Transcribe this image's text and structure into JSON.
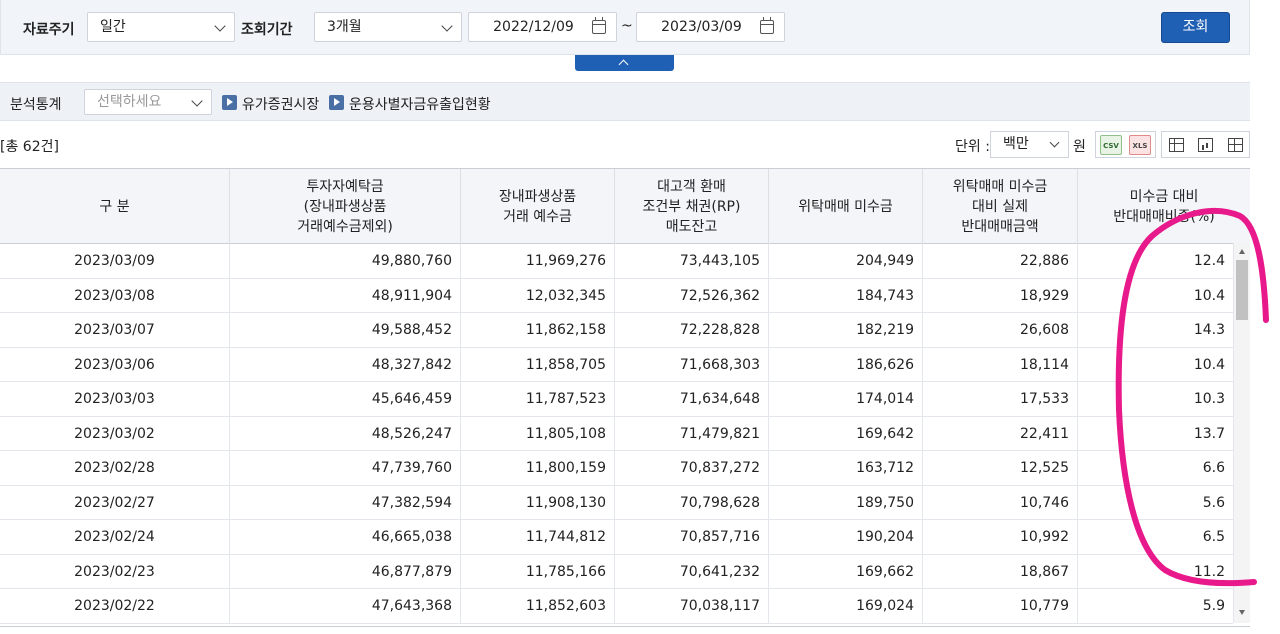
{
  "filters": {
    "period_label": "자료주기",
    "period_value": "일간",
    "range_label": "조회기간",
    "range_value": "3개월",
    "start_date": "2022/12/09",
    "tilde": "~",
    "end_date": "2023/03/09",
    "search_button": "조회"
  },
  "analysis": {
    "label": "분석통계",
    "select_placeholder": "선택하세요",
    "link1": "유가증권시장",
    "link2": "운용사별자금유출입현황"
  },
  "info": {
    "count": "[총 62건]",
    "unit_label": "단위 :",
    "unit_value": "백만",
    "unit_suffix": "원",
    "csv_label": "CSV",
    "xls_label": "XLS"
  },
  "table": {
    "headers": [
      "구 분",
      "투자자예탁금\n(장내파생상품\n거래예수금제외)",
      "장내파생상품\n거래 예수금",
      "대고객 환매\n조건부 채권(RP)\n매도잔고",
      "위탁매매 미수금",
      "위탁매매 미수금\n대비 실제\n반대매매금액",
      "미수금 대비\n반대매매비중(%)"
    ],
    "rows": [
      [
        "2023/03/09",
        "49,880,760",
        "11,969,276",
        "73,443,105",
        "204,949",
        "22,886",
        "12.4"
      ],
      [
        "2023/03/08",
        "48,911,904",
        "12,032,345",
        "72,526,362",
        "184,743",
        "18,929",
        "10.4"
      ],
      [
        "2023/03/07",
        "49,588,452",
        "11,862,158",
        "72,228,828",
        "182,219",
        "26,608",
        "14.3"
      ],
      [
        "2023/03/06",
        "48,327,842",
        "11,858,705",
        "71,668,303",
        "186,626",
        "18,114",
        "10.4"
      ],
      [
        "2023/03/03",
        "45,646,459",
        "11,787,523",
        "71,634,648",
        "174,014",
        "17,533",
        "10.3"
      ],
      [
        "2023/03/02",
        "48,526,247",
        "11,805,108",
        "71,479,821",
        "169,642",
        "22,411",
        "13.7"
      ],
      [
        "2023/02/28",
        "47,739,760",
        "11,800,159",
        "70,837,272",
        "163,712",
        "12,525",
        "6.6"
      ],
      [
        "2023/02/27",
        "47,382,594",
        "11,908,130",
        "70,798,628",
        "189,750",
        "10,746",
        "5.6"
      ],
      [
        "2023/02/24",
        "46,665,038",
        "11,744,812",
        "70,857,716",
        "190,204",
        "10,992",
        "6.5"
      ],
      [
        "2023/02/23",
        "46,877,879",
        "11,785,166",
        "70,641,232",
        "169,662",
        "18,867",
        "11.2"
      ],
      [
        "2023/02/22",
        "47,643,368",
        "11,852,603",
        "70,038,117",
        "169,024",
        "10,779",
        "5.9"
      ]
    ]
  },
  "annotation": {
    "color": "#e8198b"
  }
}
